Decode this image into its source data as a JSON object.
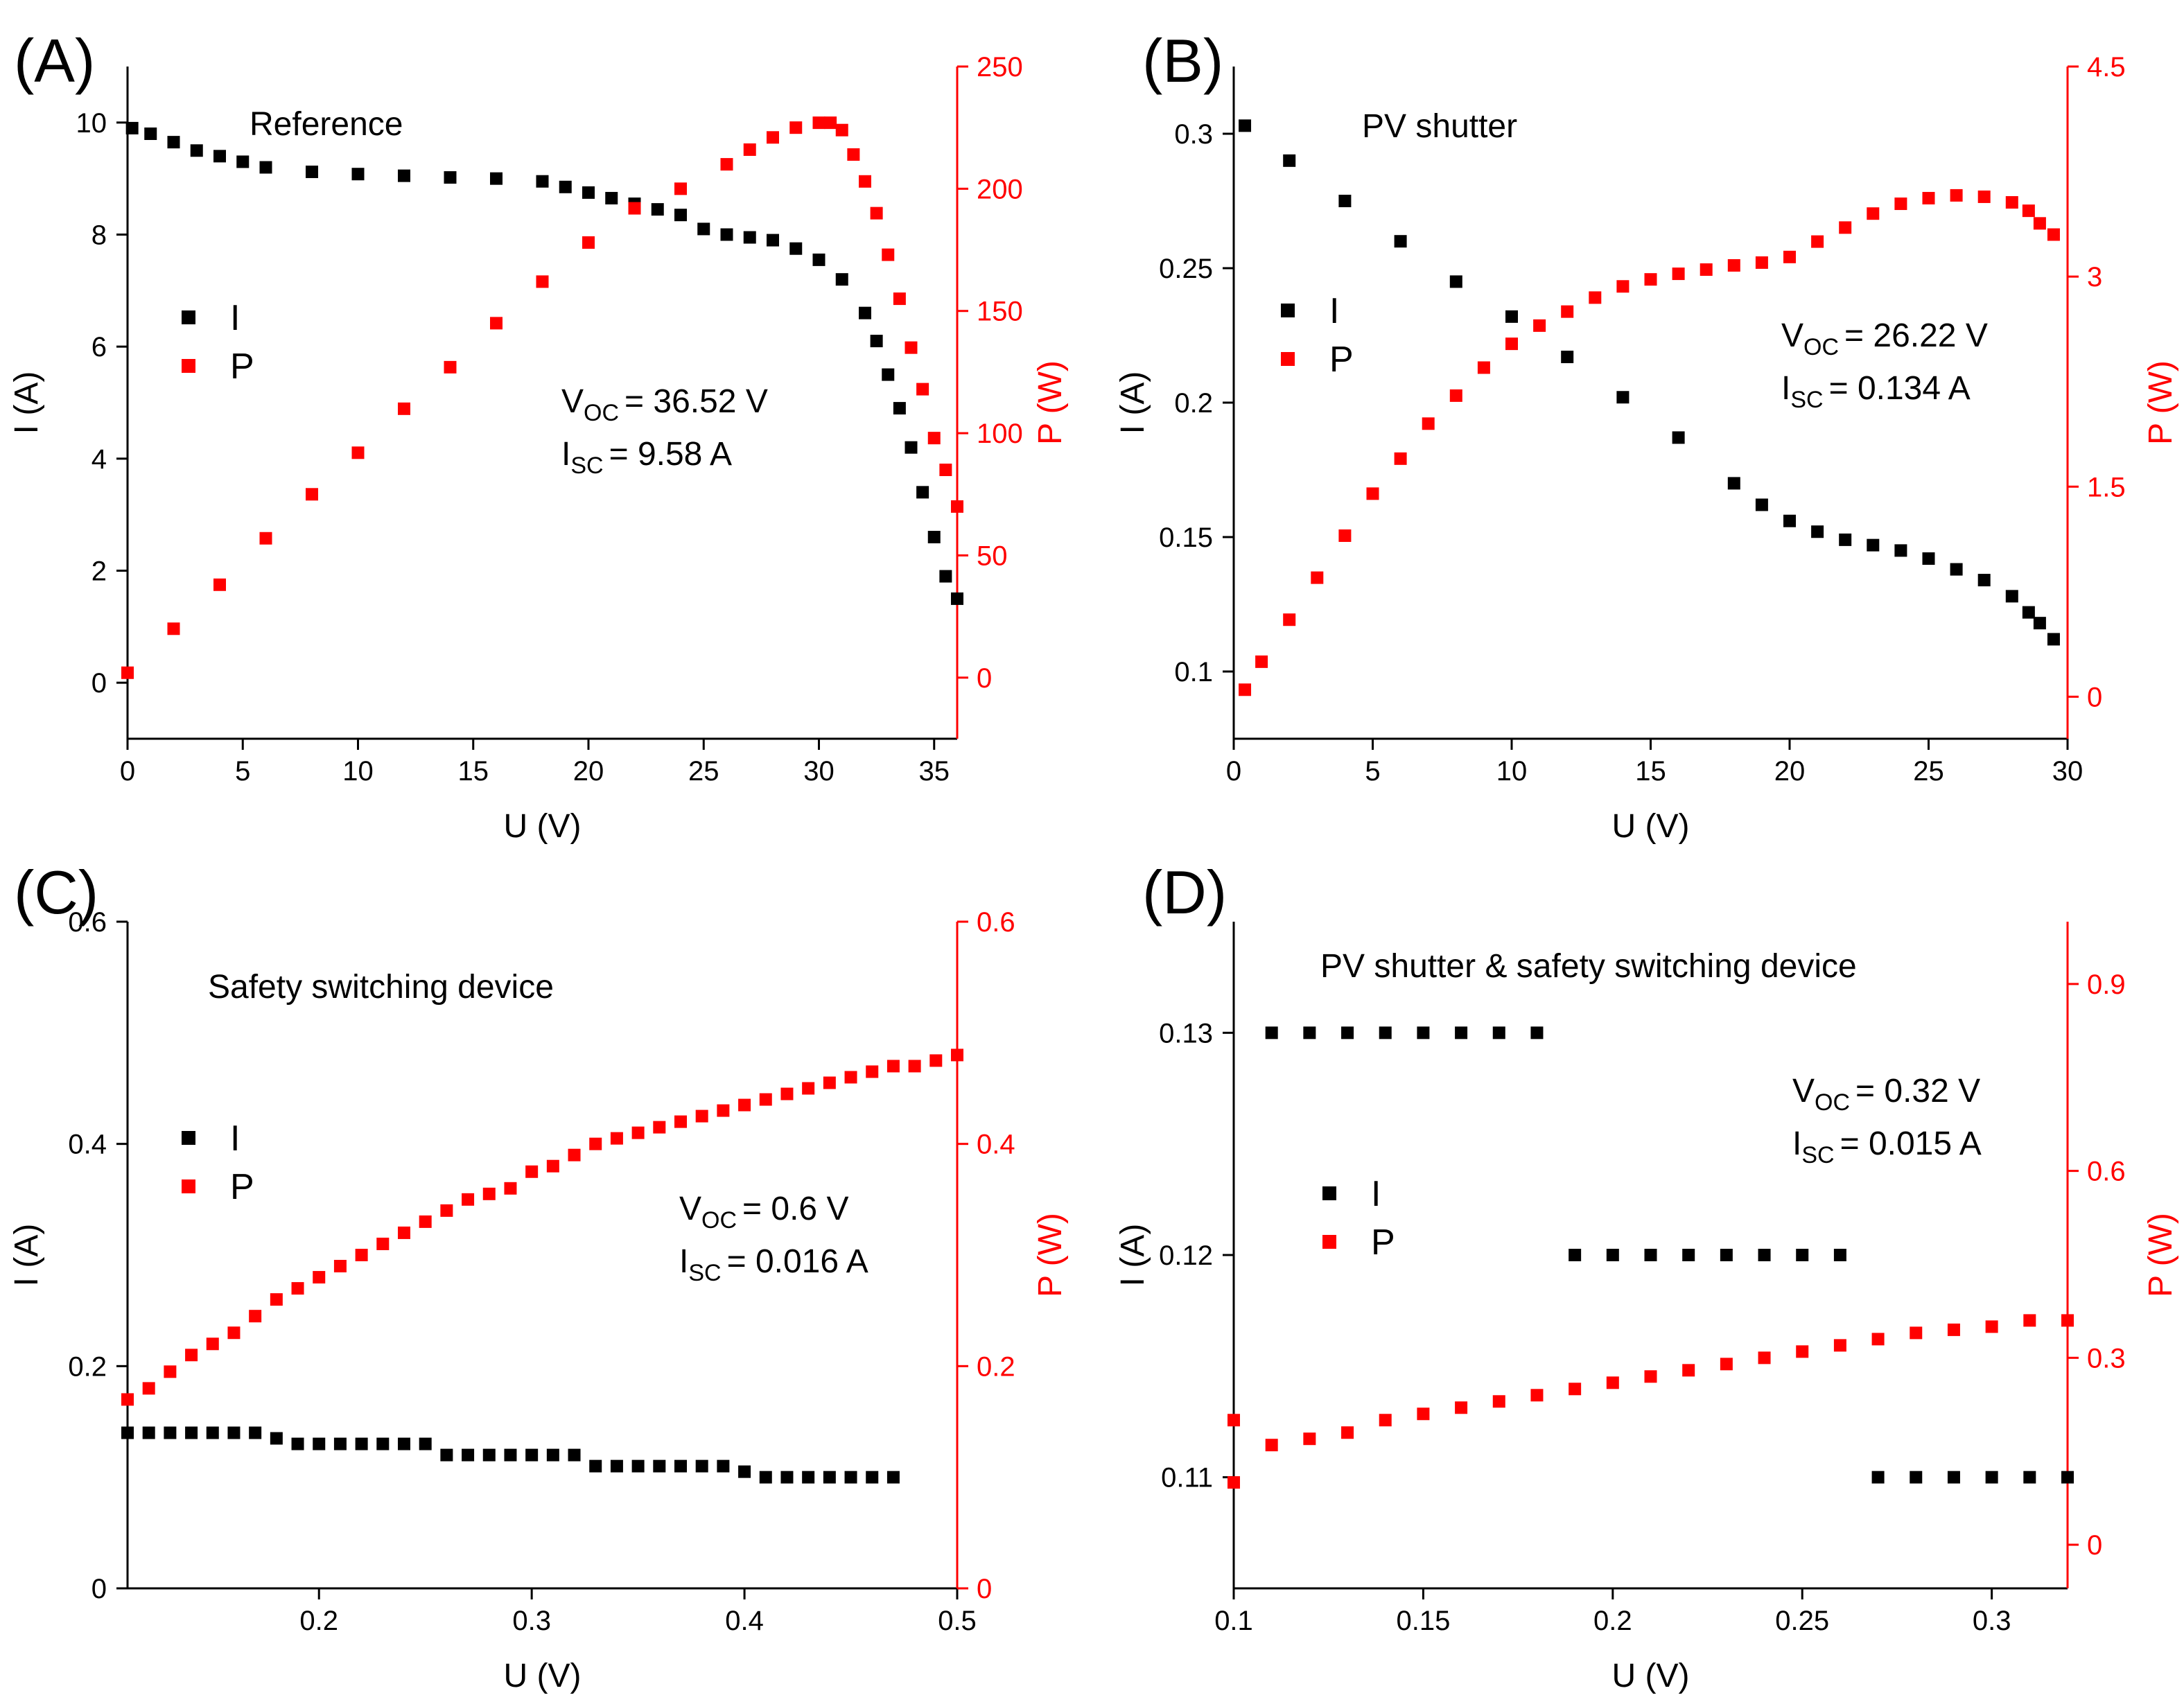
{
  "chart_data": [
    {
      "panel": "(A)",
      "type": "scatter",
      "title": "Reference",
      "xlabel": "U (V)",
      "ylabel": "I (A)",
      "y2label": "P (W)",
      "xlim": [
        0,
        36
      ],
      "ylim": [
        -1,
        11
      ],
      "y2lim": [
        -25,
        250
      ],
      "xticks": [
        0,
        5,
        10,
        15,
        20,
        25,
        30,
        35
      ],
      "yticks": [
        0,
        2,
        4,
        6,
        8,
        10
      ],
      "y2ticks": [
        0,
        50,
        100,
        150,
        200,
        250
      ],
      "legend": [
        "I",
        "P"
      ],
      "legend_position": "left",
      "annotation": {
        "voc_symbol": "V",
        "voc_sub": "OC",
        "voc_value": "= 36.52 V",
        "isc_symbol": "I",
        "isc_sub": "SC",
        "isc_value": "=  9.58 A"
      },
      "series": [
        {
          "name": "I",
          "axis": "left",
          "color": "#000000",
          "x": [
            0.2,
            1,
            2,
            3,
            4,
            5,
            6,
            8,
            10,
            12,
            14,
            16,
            18,
            19,
            20,
            21,
            22,
            23,
            24,
            25,
            26,
            27,
            28,
            29,
            30,
            31,
            32,
            32.5,
            33,
            33.5,
            34,
            34.5,
            35,
            35.5,
            36
          ],
          "y": [
            9.9,
            9.8,
            9.65,
            9.5,
            9.4,
            9.3,
            9.2,
            9.12,
            9.08,
            9.05,
            9.02,
            9.0,
            8.95,
            8.85,
            8.75,
            8.65,
            8.55,
            8.45,
            8.35,
            8.1,
            8.0,
            7.95,
            7.9,
            7.75,
            7.55,
            7.2,
            6.6,
            6.1,
            5.5,
            4.9,
            4.2,
            3.4,
            2.6,
            1.9,
            1.5
          ]
        },
        {
          "name": "P",
          "axis": "right",
          "color": "#ff0000",
          "x": [
            0,
            2,
            4,
            6,
            8,
            10,
            12,
            14,
            16,
            18,
            20,
            22,
            24,
            26,
            27,
            28,
            29,
            30,
            30.5,
            31,
            31.5,
            32,
            32.5,
            33,
            33.5,
            34,
            34.5,
            35,
            35.5,
            36
          ],
          "y": [
            2,
            20,
            38,
            57,
            75,
            92,
            110,
            127,
            145,
            162,
            178,
            192,
            200,
            210,
            216,
            221,
            225,
            227,
            227,
            224,
            214,
            203,
            190,
            173,
            155,
            135,
            118,
            98,
            85,
            70
          ]
        }
      ]
    },
    {
      "panel": "(B)",
      "type": "scatter",
      "title": "PV shutter",
      "xlabel": "U (V)",
      "ylabel": "I (A)",
      "y2label": "P (W)",
      "xlim": [
        0,
        30
      ],
      "ylim": [
        0.075,
        0.325
      ],
      "y2lim": [
        -0.3,
        4.5
      ],
      "xticks": [
        0,
        5,
        10,
        15,
        20,
        25,
        30
      ],
      "yticks": [
        0.1,
        0.15,
        0.2,
        0.25,
        0.3
      ],
      "y2ticks": [
        0,
        1.5,
        3,
        4.5
      ],
      "legend": [
        "I",
        "P"
      ],
      "legend_position": "left",
      "annotation": {
        "voc_symbol": "V",
        "voc_sub": "OC",
        "voc_value": "= 26.22 V",
        "isc_symbol": "I",
        "isc_sub": "SC",
        "isc_value": "=  0.134 A"
      },
      "series": [
        {
          "name": "I",
          "axis": "left",
          "color": "#000000",
          "x": [
            0.4,
            2,
            4,
            6,
            8,
            10,
            12,
            14,
            16,
            18,
            19,
            20,
            21,
            22,
            23,
            24,
            25,
            26,
            27,
            28,
            28.6,
            29,
            29.5
          ],
          "y": [
            0.303,
            0.29,
            0.275,
            0.26,
            0.245,
            0.232,
            0.217,
            0.202,
            0.187,
            0.17,
            0.162,
            0.156,
            0.152,
            0.149,
            0.147,
            0.145,
            0.142,
            0.138,
            0.134,
            0.128,
            0.122,
            0.118,
            0.112
          ]
        },
        {
          "name": "P",
          "axis": "right",
          "color": "#ff0000",
          "x": [
            0.4,
            1,
            2,
            3,
            4,
            5,
            6,
            7,
            8,
            9,
            10,
            11,
            12,
            13,
            14,
            15,
            16,
            17,
            18,
            19,
            20,
            21,
            22,
            23,
            24,
            25,
            26,
            27,
            28,
            28.6,
            29,
            29.5
          ],
          "y": [
            0.05,
            0.25,
            0.55,
            0.85,
            1.15,
            1.45,
            1.7,
            1.95,
            2.15,
            2.35,
            2.52,
            2.65,
            2.75,
            2.85,
            2.93,
            2.98,
            3.02,
            3.05,
            3.08,
            3.1,
            3.14,
            3.25,
            3.35,
            3.45,
            3.52,
            3.56,
            3.58,
            3.57,
            3.53,
            3.47,
            3.38,
            3.3
          ]
        }
      ]
    },
    {
      "panel": "(C)",
      "type": "scatter",
      "title": "Safety switching device",
      "xlabel": "U (V)",
      "ylabel": "I (A)",
      "y2label": "P (W)",
      "xlim": [
        0.11,
        0.5
      ],
      "ylim": [
        0,
        0.6
      ],
      "y2lim": [
        0,
        0.6
      ],
      "xticks": [
        0.2,
        0.3,
        0.4,
        0.5
      ],
      "yticks": [
        0,
        0.2,
        0.4,
        0.6
      ],
      "y2ticks": [
        0,
        0.2,
        0.4,
        0.6
      ],
      "legend": [
        "I",
        "P"
      ],
      "legend_position": "left",
      "annotation": {
        "voc_symbol": "V",
        "voc_sub": "OC",
        "voc_value": "= 0.6 V",
        "isc_symbol": "I",
        "isc_sub": "SC",
        "isc_value": "=  0.016 A"
      },
      "series": [
        {
          "name": "I",
          "axis": "left",
          "color": "#000000",
          "x": [
            0.11,
            0.12,
            0.13,
            0.14,
            0.15,
            0.16,
            0.17,
            0.18,
            0.19,
            0.2,
            0.21,
            0.22,
            0.23,
            0.24,
            0.25,
            0.26,
            0.27,
            0.28,
            0.29,
            0.3,
            0.31,
            0.32,
            0.33,
            0.34,
            0.35,
            0.36,
            0.37,
            0.38,
            0.39,
            0.4,
            0.41,
            0.42,
            0.43,
            0.44,
            0.45,
            0.46,
            0.47
          ],
          "y": [
            0.14,
            0.14,
            0.14,
            0.14,
            0.14,
            0.14,
            0.14,
            0.135,
            0.13,
            0.13,
            0.13,
            0.13,
            0.13,
            0.13,
            0.13,
            0.12,
            0.12,
            0.12,
            0.12,
            0.12,
            0.12,
            0.12,
            0.11,
            0.11,
            0.11,
            0.11,
            0.11,
            0.11,
            0.11,
            0.105,
            0.1,
            0.1,
            0.1,
            0.1,
            0.1,
            0.1,
            0.1
          ]
        },
        {
          "name": "P",
          "axis": "right",
          "color": "#ff0000",
          "x": [
            0.11,
            0.12,
            0.13,
            0.14,
            0.15,
            0.16,
            0.17,
            0.18,
            0.19,
            0.2,
            0.21,
            0.22,
            0.23,
            0.24,
            0.25,
            0.26,
            0.27,
            0.28,
            0.29,
            0.3,
            0.31,
            0.32,
            0.33,
            0.34,
            0.35,
            0.36,
            0.37,
            0.38,
            0.39,
            0.4,
            0.41,
            0.42,
            0.43,
            0.44,
            0.45,
            0.46,
            0.47,
            0.48,
            0.49,
            0.5
          ],
          "y": [
            0.17,
            0.18,
            0.195,
            0.21,
            0.22,
            0.23,
            0.245,
            0.26,
            0.27,
            0.28,
            0.29,
            0.3,
            0.31,
            0.32,
            0.33,
            0.34,
            0.35,
            0.355,
            0.36,
            0.375,
            0.38,
            0.39,
            0.4,
            0.405,
            0.41,
            0.415,
            0.42,
            0.425,
            0.43,
            0.435,
            0.44,
            0.445,
            0.45,
            0.455,
            0.46,
            0.465,
            0.47,
            0.47,
            0.475,
            0.48
          ]
        }
      ]
    },
    {
      "panel": "(D)",
      "type": "scatter",
      "title": "PV shutter & safety switching device",
      "xlabel": "U (V)",
      "ylabel": "I (A)",
      "y2label": "P (W)",
      "xlim": [
        0.1,
        0.32
      ],
      "ylim": [
        0.105,
        0.135
      ],
      "y2lim": [
        -0.07,
        1.0
      ],
      "xticks": [
        0.1,
        0.15,
        0.2,
        0.25,
        0.3
      ],
      "yticks": [
        0.11,
        0.12,
        0.13
      ],
      "y2ticks": [
        0,
        0.3,
        0.6,
        0.9
      ],
      "legend": [
        "I",
        "P"
      ],
      "legend_position": "center-left",
      "annotation": {
        "voc_symbol": "V",
        "voc_sub": "OC",
        "voc_value": "= 0.32 V",
        "isc_symbol": "I",
        "isc_sub": "SC",
        "isc_value": "=  0.015 A"
      },
      "series": [
        {
          "name": "I",
          "axis": "left",
          "color": "#000000",
          "x": [
            0.11,
            0.12,
            0.13,
            0.14,
            0.15,
            0.16,
            0.17,
            0.18,
            0.19,
            0.2,
            0.21,
            0.22,
            0.23,
            0.24,
            0.25,
            0.26,
            0.27,
            0.28,
            0.29,
            0.3,
            0.31,
            0.32
          ],
          "y": [
            0.13,
            0.13,
            0.13,
            0.13,
            0.13,
            0.13,
            0.13,
            0.13,
            0.12,
            0.12,
            0.12,
            0.12,
            0.12,
            0.12,
            0.12,
            0.12,
            0.11,
            0.11,
            0.11,
            0.11,
            0.11,
            0.11
          ]
        },
        {
          "name": "P",
          "axis": "right",
          "color": "#ff0000",
          "x": [
            0.1,
            0.1,
            0.11,
            0.12,
            0.13,
            0.14,
            0.15,
            0.16,
            0.17,
            0.18,
            0.19,
            0.2,
            0.21,
            0.22,
            0.23,
            0.24,
            0.25,
            0.26,
            0.27,
            0.28,
            0.29,
            0.3,
            0.31,
            0.32
          ],
          "y": [
            0.2,
            0.1,
            0.16,
            0.17,
            0.18,
            0.2,
            0.21,
            0.22,
            0.23,
            0.24,
            0.25,
            0.26,
            0.27,
            0.28,
            0.29,
            0.3,
            0.31,
            0.32,
            0.33,
            0.34,
            0.345,
            0.35,
            0.36,
            0.36
          ]
        }
      ]
    }
  ]
}
